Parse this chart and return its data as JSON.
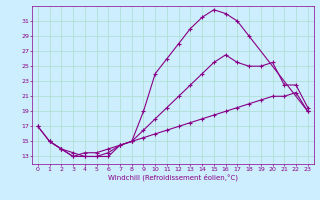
{
  "xlabel": "Windchill (Refroidissement éolien,°C)",
  "bg_color": "#cceeff",
  "line_color": "#880088",
  "grid_color": "#aaddcc",
  "xlim": [
    -0.5,
    23.5
  ],
  "ylim": [
    12,
    33
  ],
  "yticks": [
    13,
    15,
    17,
    19,
    21,
    23,
    25,
    27,
    29,
    31
  ],
  "xticks": [
    0,
    1,
    2,
    3,
    4,
    5,
    6,
    7,
    8,
    9,
    10,
    11,
    12,
    13,
    14,
    15,
    16,
    17,
    18,
    19,
    20,
    21,
    22,
    23
  ],
  "curve1_x": [
    0,
    1,
    2,
    3,
    4,
    5,
    6,
    7,
    8,
    9,
    10,
    11,
    12,
    13,
    14,
    15,
    16,
    17,
    18,
    23
  ],
  "curve1_y": [
    17.0,
    15.0,
    14.0,
    13.0,
    13.0,
    13.0,
    13.0,
    14.5,
    15.0,
    19.0,
    24.0,
    26.0,
    28.0,
    30.0,
    31.5,
    32.5,
    32.0,
    31.0,
    29.0,
    19.0
  ],
  "curve2_x": [
    1,
    2,
    3,
    4,
    5,
    6,
    7,
    8,
    9,
    10,
    11,
    12,
    13,
    14,
    15,
    16,
    17,
    18,
    19,
    20,
    21,
    22,
    23
  ],
  "curve2_y": [
    15.0,
    14.0,
    13.5,
    13.0,
    13.0,
    13.5,
    14.5,
    15.0,
    16.5,
    18.0,
    19.5,
    21.0,
    22.5,
    24.0,
    25.5,
    26.5,
    25.5,
    25.0,
    25.0,
    25.5,
    22.5,
    22.5,
    19.5
  ],
  "curve3_x": [
    0,
    1,
    2,
    3,
    4,
    5,
    6,
    7,
    8,
    9,
    10,
    11,
    12,
    13,
    14,
    15,
    16,
    17,
    18,
    19,
    20,
    21,
    22,
    23
  ],
  "curve3_y": [
    17.0,
    15.0,
    14.0,
    13.0,
    13.5,
    13.5,
    14.0,
    14.5,
    15.0,
    15.5,
    16.0,
    16.5,
    17.0,
    17.5,
    18.0,
    18.5,
    19.0,
    19.5,
    20.0,
    20.5,
    21.0,
    21.0,
    21.5,
    19.0
  ]
}
